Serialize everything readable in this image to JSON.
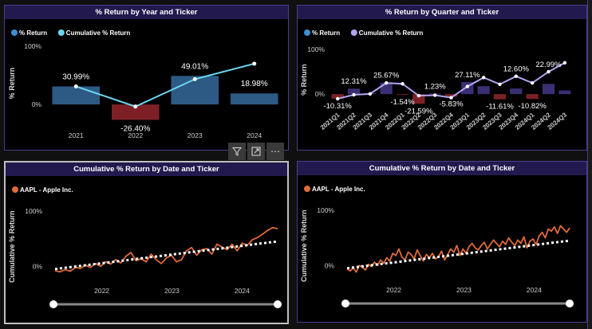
{
  "colors": {
    "blue": "#2c5a85",
    "red": "#7d2026",
    "cyan": "#6ad7f0",
    "purple_bar": "#3a2f72",
    "lavender": "#b5a3f0",
    "orange": "#e06a38",
    "trend": "#ffffff"
  },
  "chart_data": [
    {
      "type": "bar",
      "title": "% Return by Year and Ticker",
      "legend": [
        "% Return",
        "Cumulative % Return"
      ],
      "ylabel": "% Return",
      "yticks": [
        "100%",
        "0%"
      ],
      "categories": [
        "2021",
        "2022",
        "2023",
        "2024"
      ],
      "values": [
        30.99,
        -26.4,
        49.01,
        18.98
      ],
      "labels": [
        "30.99%",
        "-26.40%",
        "49.01%",
        "18.98%"
      ],
      "cumulative": [
        30.99,
        -3.6,
        43.4,
        70.0
      ],
      "ylim": [
        -60,
        100
      ]
    },
    {
      "type": "bar",
      "title": "% Return by Quarter and Ticker",
      "legend": [
        "% Return",
        "Cumulative % Return"
      ],
      "ylabel": "% Return",
      "yticks": [
        "100%",
        "0%"
      ],
      "categories": [
        "2021Q1",
        "2021Q2",
        "2021Q3",
        "2021Q4",
        "2022Q1",
        "2022Q2",
        "2022Q3",
        "2022Q4",
        "2023Q1",
        "2023Q2",
        "2023Q3",
        "2023Q4",
        "2024Q1",
        "2024Q2",
        "2024Q3"
      ],
      "values": [
        -10.31,
        12.31,
        2.0,
        25.67,
        -1.54,
        -21.59,
        1.23,
        -5.83,
        27.11,
        17.8,
        -11.61,
        12.6,
        -10.82,
        22.99,
        8.0
      ],
      "labels": [
        "-10.31%",
        "12.31%",
        "",
        "25.67%",
        "-1.54%",
        "-21.59%",
        "1.23%",
        "-5.83%",
        "27.11%",
        "",
        "-11.61%",
        "12.60%",
        "-10.82%",
        "22.99%",
        ""
      ],
      "cumulative": [
        -10.3,
        -1.5,
        0.5,
        25.0,
        23.0,
        -3.6,
        -2.4,
        -7.9,
        17.0,
        37.0,
        22.0,
        40.0,
        25.0,
        50.0,
        70.0
      ],
      "ylim": [
        -30,
        100
      ]
    },
    {
      "type": "line",
      "title": "Cumulative % Return by Date and Ticker",
      "legend": [
        "AAPL - Apple Inc."
      ],
      "ylabel": "Cumulative % Return",
      "yticks": [
        "100%",
        "0%"
      ],
      "xticks": [
        "2022",
        "2023",
        "2024"
      ],
      "ylim": [
        -40,
        110
      ],
      "points": [
        -8,
        -10,
        -6,
        -9,
        -2,
        -4,
        2,
        -2,
        5,
        0,
        8,
        4,
        12,
        6,
        18,
        25,
        10,
        14,
        8,
        22,
        12,
        5,
        15,
        20,
        8,
        12,
        28,
        34,
        20,
        30,
        32,
        22,
        40,
        35,
        30,
        40,
        28,
        42,
        38,
        48,
        52,
        58,
        65,
        70,
        68
      ],
      "trend": [
        -5,
        45
      ]
    },
    {
      "type": "line",
      "title": "Cumulative % Return by Date and Ticker",
      "legend": [
        "AAPL - Apple Inc."
      ],
      "ylabel": "Cumulative % Return",
      "yticks": [
        "100%",
        "0%"
      ],
      "xticks": [
        "2022",
        "2023",
        "2024"
      ],
      "ylim": [
        -40,
        110
      ],
      "points": [
        -6,
        -10,
        -4,
        -12,
        0,
        -3,
        -8,
        2,
        -2,
        6,
        0,
        10,
        4,
        14,
        8,
        22,
        18,
        30,
        15,
        10,
        24,
        20,
        12,
        28,
        18,
        8,
        20,
        14,
        22,
        12,
        16,
        26,
        10,
        20,
        30,
        24,
        36,
        18,
        30,
        22,
        34,
        40,
        32,
        28,
        36,
        42,
        30,
        38,
        46,
        40,
        34,
        44,
        38,
        50,
        42,
        36,
        46,
        40,
        52,
        32,
        44,
        48,
        38,
        54,
        60,
        50,
        66,
        62,
        70,
        58,
        72,
        66,
        60,
        68
      ],
      "trend": [
        -5,
        45
      ]
    }
  ],
  "toolbar": {
    "filter_icon": "filter-icon",
    "focus_icon": "focus-mode-icon",
    "more_label": "⋯"
  }
}
